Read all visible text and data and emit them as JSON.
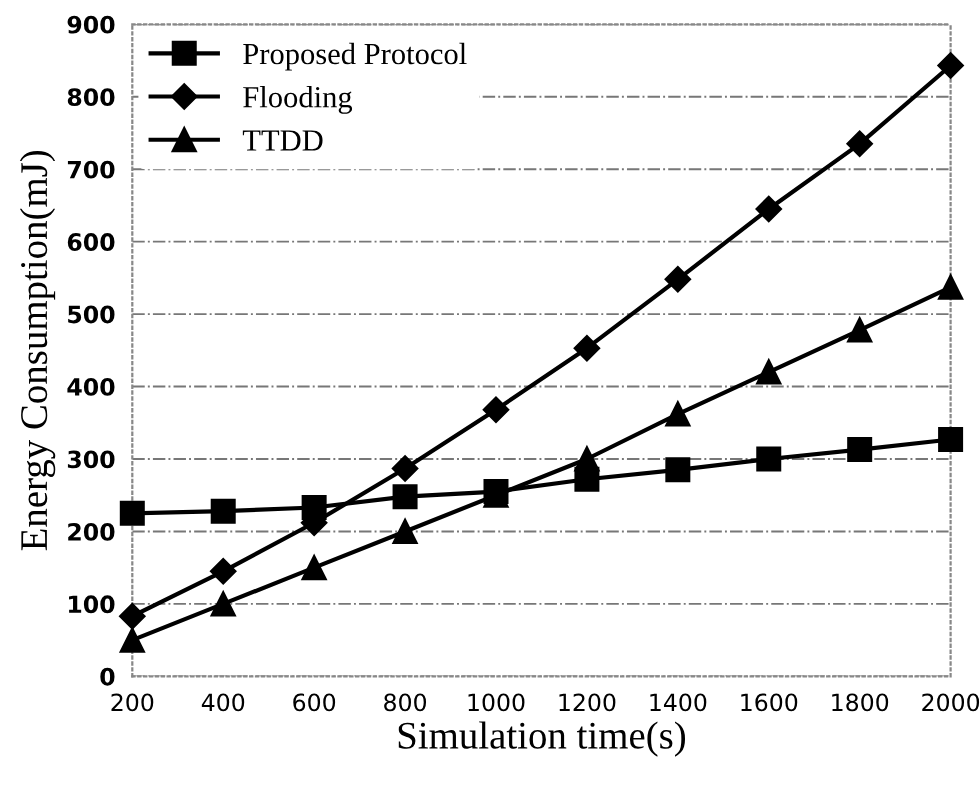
{
  "chart_data": {
    "type": "line",
    "xlabel": "Simulation time(s)",
    "ylabel": "Energy Consumption(mJ)",
    "x": [
      200,
      400,
      600,
      800,
      1000,
      1200,
      1400,
      1600,
      1800,
      2000
    ],
    "series": [
      {
        "name": "Proposed Protocol",
        "color": "#000000",
        "marker": "square",
        "values": [
          225,
          228,
          233,
          248,
          255,
          272,
          285,
          300,
          313,
          327
        ]
      },
      {
        "name": "Flooding",
        "color": "#000000",
        "marker": "diamond",
        "values": [
          83,
          145,
          212,
          287,
          368,
          453,
          548,
          645,
          735,
          843
        ]
      },
      {
        "name": "TTDD",
        "color": "#000000",
        "marker": "triangle",
        "values": [
          50,
          100,
          150,
          200,
          250,
          300,
          362,
          420,
          478,
          537
        ]
      }
    ],
    "xlim": [
      200,
      2000
    ],
    "xticks": [
      200,
      400,
      600,
      800,
      1000,
      1200,
      1400,
      1600,
      1800,
      2000
    ],
    "ylim": [
      0,
      900
    ],
    "yticks": [
      0,
      100,
      200,
      300,
      400,
      500,
      600,
      700,
      800,
      900
    ],
    "grid": "y",
    "legend": "top left",
    "line_style": "solid"
  }
}
